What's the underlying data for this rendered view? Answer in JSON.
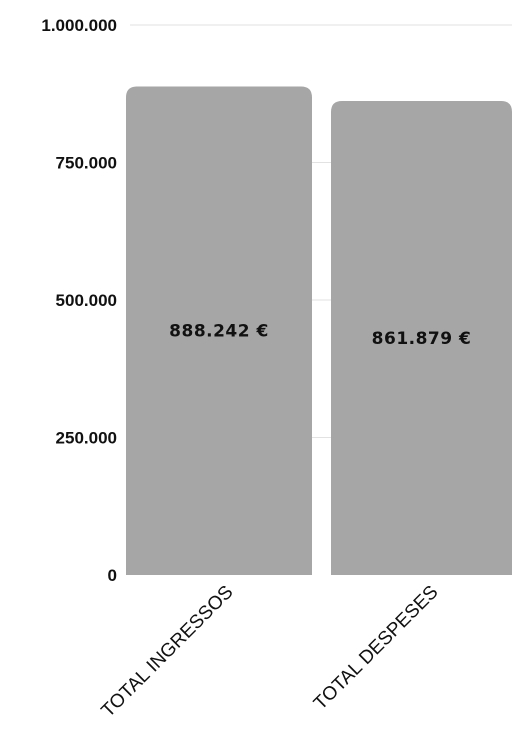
{
  "chart_data": {
    "type": "bar",
    "categories": [
      "TOTAL INGRESSOS",
      "TOTAL DESPESES"
    ],
    "values": [
      888242,
      861879
    ],
    "data_labels": [
      "888.242 €",
      "861.879 €"
    ],
    "ylim": [
      0,
      1000000
    ],
    "y_ticks": [
      0,
      250000,
      500000,
      750000,
      1000000
    ],
    "y_tick_labels": [
      "0",
      "250.000",
      "500.000",
      "750.000",
      "1.000.000"
    ],
    "grid": true,
    "bar_color": "#a6a6a6",
    "grid_color": "#e2e2e2"
  }
}
